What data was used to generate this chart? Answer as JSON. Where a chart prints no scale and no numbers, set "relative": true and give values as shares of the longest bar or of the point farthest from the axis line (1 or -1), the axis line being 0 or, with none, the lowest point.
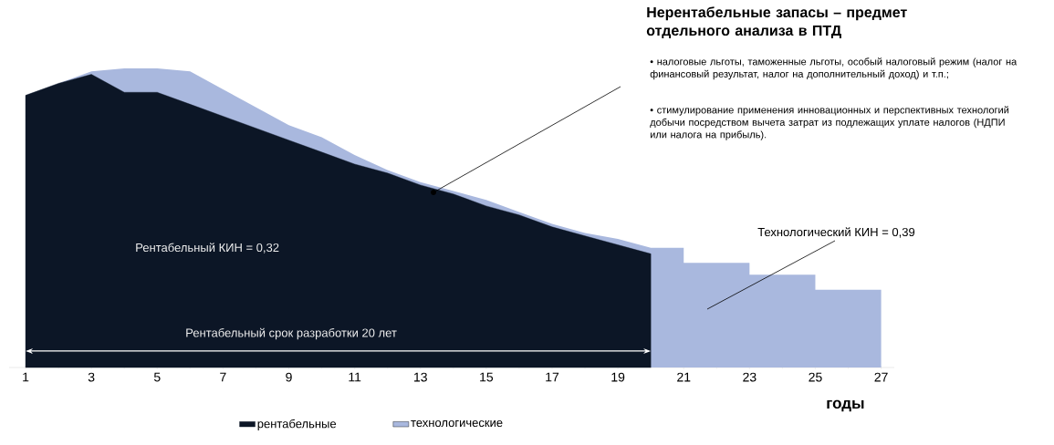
{
  "chart_data": {
    "type": "area",
    "relative": true,
    "xlabel": "годы",
    "xlim": [
      0.5,
      27.4
    ],
    "xticks": [
      1,
      3,
      5,
      7,
      9,
      11,
      13,
      15,
      17,
      19,
      21,
      23,
      25,
      27
    ],
    "legend": "bottom",
    "series": [
      {
        "name": "рентабельные",
        "color": "#0c1626",
        "x": [
          1,
          2,
          3,
          4,
          5,
          6,
          7,
          8,
          9,
          10,
          11,
          12,
          13,
          14,
          15,
          16,
          17,
          18,
          19,
          20
        ],
        "values": [
          0.91,
          0.95,
          0.98,
          0.92,
          0.92,
          0.88,
          0.84,
          0.8,
          0.76,
          0.72,
          0.68,
          0.65,
          0.61,
          0.58,
          0.54,
          0.51,
          0.47,
          0.44,
          0.41,
          0.38
        ]
      },
      {
        "name": "технологические",
        "color": "#a9b8de",
        "x": [
          1,
          2,
          3,
          4,
          5,
          6,
          7,
          8,
          9,
          10,
          11,
          12,
          13,
          14,
          15,
          16,
          17,
          18,
          19,
          20,
          21,
          21,
          23,
          23,
          25,
          25,
          27
        ],
        "values": [
          0.91,
          0.95,
          0.99,
          1.0,
          1.0,
          0.99,
          0.93,
          0.87,
          0.81,
          0.77,
          0.71,
          0.66,
          0.62,
          0.59,
          0.56,
          0.52,
          0.48,
          0.45,
          0.43,
          0.4,
          0.4,
          0.35,
          0.35,
          0.31,
          0.31,
          0.26,
          0.26
        ]
      }
    ],
    "annotations": [
      "Нерентабельные запасы – предмет отдельного анализа в ПТД",
      "• налоговые льготы, таможенные льготы, особый налоговый режим (налог на финансовый результат, налог на дополнительный доход) и т.п.;",
      "• стимулирование применения инновационных и перспективных технологий добычи посредством вычета затрат из подлежащих уплате налогов (НДПИ или налога на прибыль).",
      "Технологический КИН = 0,39",
      "Рентабельный КИН = 0,32",
      "Рентабельный срок разработки 20 лет"
    ]
  }
}
